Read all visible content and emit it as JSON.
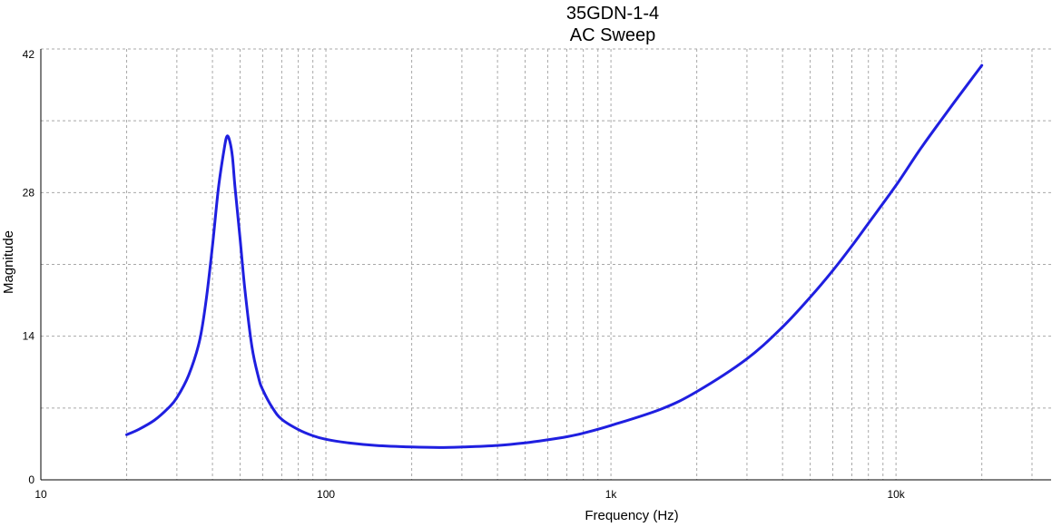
{
  "chart_data": {
    "type": "line",
    "title": "35GDN-1-4",
    "subtitle": "AC Sweep",
    "xlabel": "Frequency (Hz)",
    "ylabel": "Magnitude",
    "x_scale": "log",
    "xlim": [
      10,
      35000
    ],
    "ylim": [
      0,
      42
    ],
    "x_ticks": [
      {
        "value": 10,
        "label": "10"
      },
      {
        "value": 100,
        "label": "100"
      },
      {
        "value": 1000,
        "label": "1k"
      },
      {
        "value": 10000,
        "label": "10k"
      }
    ],
    "y_ticks": [
      {
        "value": 0,
        "label": "0"
      },
      {
        "value": 14,
        "label": "14"
      },
      {
        "value": 28,
        "label": "28"
      },
      {
        "value": 42,
        "label": "42"
      }
    ],
    "y_minor_grid": [
      7,
      21,
      35
    ],
    "grid": true,
    "series": [
      {
        "color": "#1f1fe0",
        "x": [
          20,
          22,
          25,
          28,
          30,
          33,
          36,
          38,
          40,
          42,
          44,
          45,
          46,
          47,
          48,
          50,
          52,
          55,
          58,
          60,
          65,
          70,
          80,
          90,
          100,
          120,
          150,
          200,
          250,
          300,
          400,
          500,
          600,
          700,
          800,
          1000,
          1500,
          2000,
          3000,
          4000,
          5000,
          6000,
          7000,
          8000,
          10000,
          12000,
          14000,
          16000,
          18000,
          20000
        ],
        "y": [
          4.4,
          4.9,
          5.8,
          7.0,
          8.0,
          10.2,
          13.5,
          17.5,
          22.8,
          28.5,
          32.3,
          33.5,
          33.0,
          31.5,
          28.5,
          23.5,
          18.5,
          13.0,
          10.0,
          8.8,
          7.0,
          5.9,
          4.9,
          4.3,
          3.95,
          3.6,
          3.35,
          3.2,
          3.15,
          3.2,
          3.35,
          3.6,
          3.9,
          4.2,
          4.55,
          5.3,
          6.9,
          8.6,
          11.8,
          14.9,
          17.8,
          20.4,
          22.8,
          25.0,
          28.7,
          32.0,
          34.6,
          36.8,
          38.7,
          40.4
        ]
      }
    ]
  }
}
